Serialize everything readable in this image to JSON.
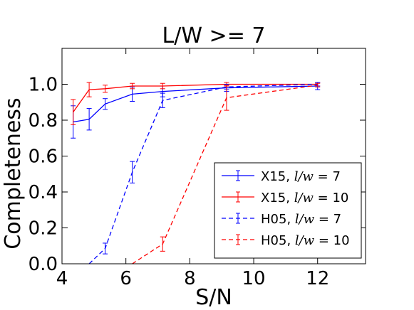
{
  "chart_data": {
    "type": "line",
    "title": "L/W >= 7",
    "xlabel": "S/N",
    "ylabel": "Completeness",
    "xlim": [
      4,
      13.5
    ],
    "ylim": [
      0,
      1.2
    ],
    "xticks": [
      4,
      6,
      8,
      10,
      12
    ],
    "yticks": [
      0.0,
      0.2,
      0.4,
      0.6,
      0.8,
      1.0
    ],
    "xtick_labels": [
      "4",
      "6",
      "8",
      "10",
      "12"
    ],
    "ytick_labels": [
      "0.0",
      "0.2",
      "0.4",
      "0.6",
      "0.8",
      "1.0"
    ],
    "grid": false,
    "legend_position": "lower-right",
    "series": [
      {
        "name_prefix": "X15, ",
        "name_math": "l/w",
        "name_suffix": " = 7",
        "color": "#0000ff",
        "linestyle": "solid",
        "x": [
          4.35,
          4.85,
          5.35,
          6.2,
          7.15,
          9.15,
          12.0
        ],
        "y": [
          0.79,
          0.805,
          0.89,
          0.945,
          0.96,
          0.98,
          0.99
        ],
        "err": [
          0.09,
          0.06,
          0.03,
          0.04,
          0.03,
          0.02,
          0.02
        ]
      },
      {
        "name_prefix": "X15, ",
        "name_math": "l/w",
        "name_suffix": " = 10",
        "color": "#ff0000",
        "linestyle": "solid",
        "x": [
          4.35,
          4.85,
          5.35,
          6.2,
          7.15,
          9.15,
          12.0
        ],
        "y": [
          0.845,
          0.97,
          0.975,
          0.99,
          0.99,
          1.0,
          1.0
        ],
        "err": [
          0.07,
          0.04,
          0.02,
          0.015,
          0.015,
          0.01,
          0.01
        ]
      },
      {
        "name_prefix": "H05, ",
        "name_math": "l/w",
        "name_suffix": " = 7",
        "color": "#0000ff",
        "linestyle": "dashed",
        "x": [
          4.85,
          5.35,
          6.2,
          7.15,
          9.15,
          12.0
        ],
        "y": [
          0.0,
          0.085,
          0.51,
          0.91,
          0.985,
          1.0
        ],
        "err": [
          0,
          0.03,
          0.06,
          0.04,
          0.015,
          0.01
        ]
      },
      {
        "name_prefix": "H05, ",
        "name_math": "l/w",
        "name_suffix": " = 10",
        "color": "#ff0000",
        "linestyle": "dashed",
        "x": [
          6.2,
          7.15,
          9.15,
          12.0
        ],
        "y": [
          0.0,
          0.11,
          0.925,
          0.995
        ],
        "err": [
          0,
          0.04,
          0.07,
          0.01
        ]
      }
    ]
  }
}
